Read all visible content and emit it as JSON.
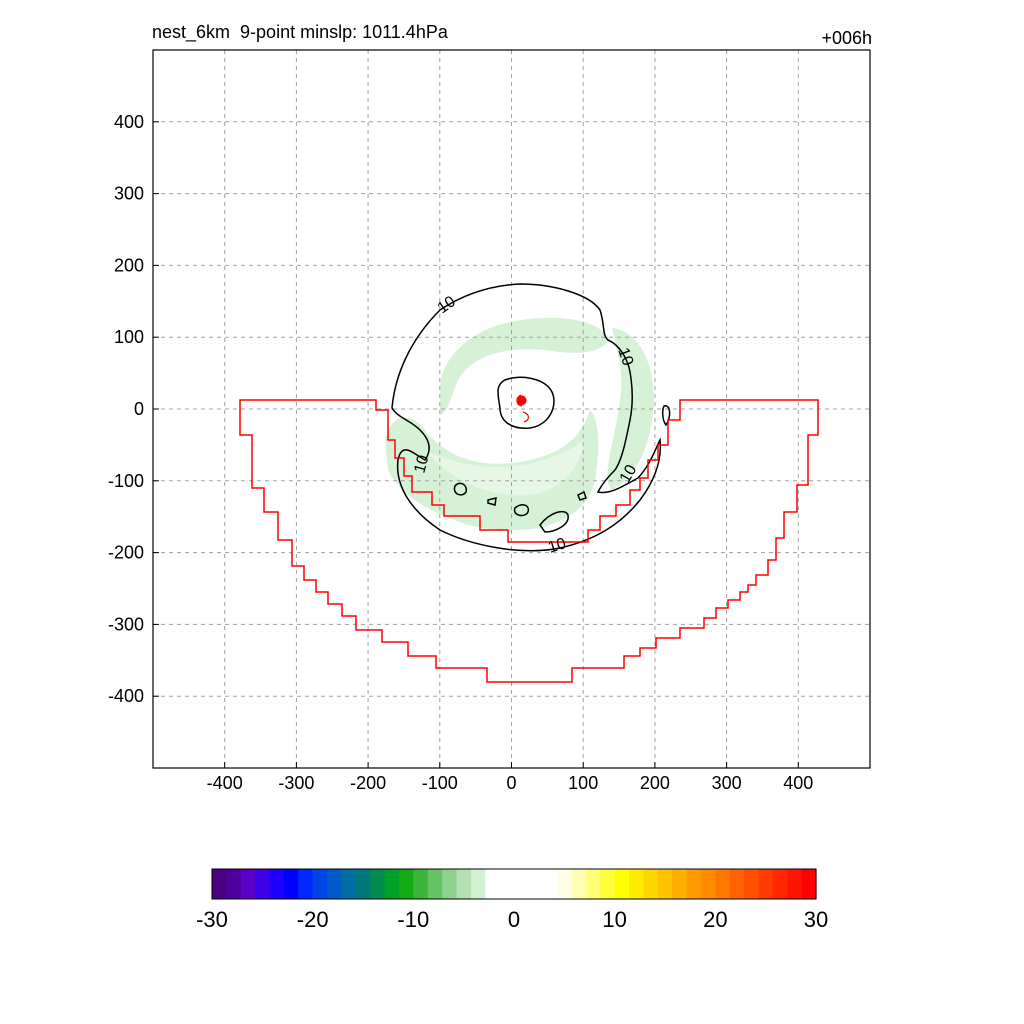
{
  "header": {
    "title_left": "nest_6km  9-point minslp: 1011.4hPa",
    "title_right": "+006h"
  },
  "chart_data": {
    "type": "heatmap",
    "title": "nest_6km  9-point minslp: 1011.4hPa",
    "lead_time": "+006h",
    "xlim": [
      -500,
      500
    ],
    "ylim": [
      -500,
      500
    ],
    "x_ticks": [
      -400,
      -300,
      -200,
      -100,
      0,
      100,
      200,
      300,
      400
    ],
    "y_ticks": [
      400,
      300,
      200,
      100,
      0,
      -100,
      -200,
      -300,
      -400
    ],
    "grid": true,
    "center_marker": {
      "x": 14,
      "y": 12,
      "color": "#ff0000"
    },
    "contour_labels": [
      "10",
      "10",
      "10",
      "10"
    ],
    "colorbar": {
      "min": -30,
      "max": 30,
      "tick_values": [
        -30,
        -20,
        -10,
        0,
        10,
        20,
        30
      ],
      "tick_labels": [
        "-30",
        "-20",
        "-10",
        "0",
        "10",
        "20",
        "30"
      ],
      "colors": [
        "#4b0082",
        "#5000a0",
        "#5a00c8",
        "#3c00e6",
        "#1e00ff",
        "#0000ff",
        "#0028ff",
        "#0046e6",
        "#005ac8",
        "#006ea0",
        "#007878",
        "#008c50",
        "#00a028",
        "#14aa14",
        "#3cb43c",
        "#64c364",
        "#8cd28c",
        "#b4e1b4",
        "#d2f0d2",
        "#ffffff",
        "#ffffff",
        "#ffffff",
        "#ffffff",
        "#ffffff",
        "#ffffe6",
        "#ffffb4",
        "#ffff78",
        "#ffff3c",
        "#ffff00",
        "#ffeb00",
        "#ffd700",
        "#ffc300",
        "#ffaf00",
        "#ff9b00",
        "#ff8c00",
        "#ff7800",
        "#ff6400",
        "#ff5000",
        "#ff3c00",
        "#ff2800",
        "#ff1400",
        "#ff0000"
      ]
    },
    "colors": {
      "shade": "#d6f2d6",
      "boundary": "#ff0000",
      "contour": "#000000",
      "grid": "#a0a0a0"
    }
  }
}
